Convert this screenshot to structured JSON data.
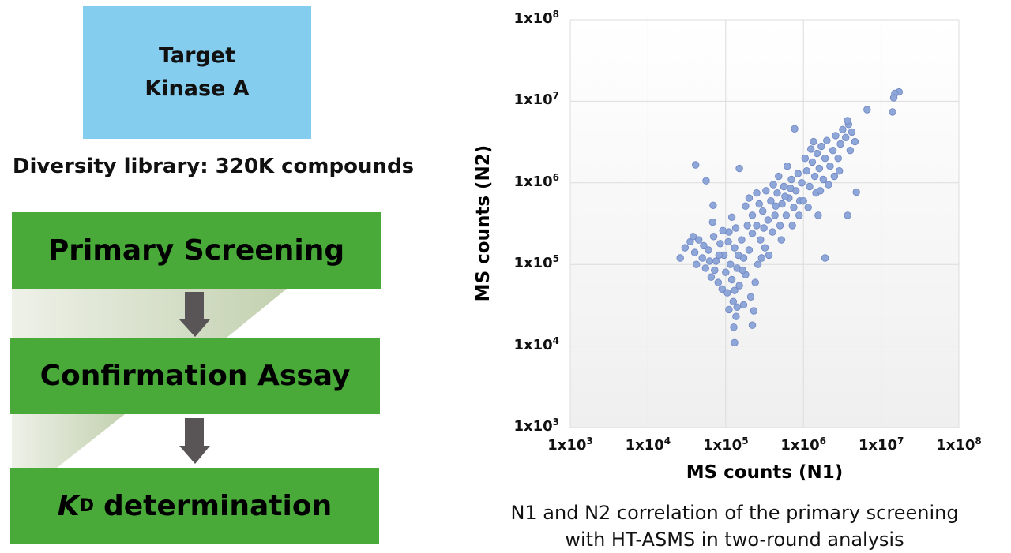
{
  "target": {
    "line1": "Target",
    "line2": "Kinase A",
    "color": "#85cdee"
  },
  "library": "Diversity library: 320K compounds",
  "workflow": {
    "color": "#49aa3a",
    "arrow_color": "#595556",
    "steps": [
      {
        "label": "Primary Screening"
      },
      {
        "label": "Confirmation Assay"
      },
      {
        "label_k": "K",
        "label_sub": "D",
        "label_rest": "determination"
      }
    ]
  },
  "chart_data": {
    "type": "scatter",
    "xlabel": "MS counts (N1)",
    "ylabel": "MS counts (N2)",
    "xscale": "log",
    "yscale": "log",
    "xlim": [
      1000,
      100000000
    ],
    "ylim": [
      1000,
      100000000
    ],
    "grid": true,
    "marker_color": "#8fa6d8",
    "x_ticks": [
      {
        "base": "1x10",
        "exp": "3"
      },
      {
        "base": "1x10",
        "exp": "4"
      },
      {
        "base": "1x10",
        "exp": "5"
      },
      {
        "base": "1x10",
        "exp": "6"
      },
      {
        "base": "1x10",
        "exp": "7"
      },
      {
        "base": "1x10",
        "exp": "8"
      }
    ],
    "y_ticks": [
      {
        "base": "1x10",
        "exp": "3"
      },
      {
        "base": "1x10",
        "exp": "4"
      },
      {
        "base": "1x10",
        "exp": "5"
      },
      {
        "base": "1x10",
        "exp": "6"
      },
      {
        "base": "1x10",
        "exp": "7"
      },
      {
        "base": "1x10",
        "exp": "8"
      }
    ],
    "points": [
      [
        30000.0,
        160000.0
      ],
      [
        35000.0,
        190000.0
      ],
      [
        40000.0,
        140000.0
      ],
      [
        45000.0,
        200000.0
      ],
      [
        50000.0,
        120000.0
      ],
      [
        55000.0,
        90000.0
      ],
      [
        60000.0,
        150000.0
      ],
      [
        65000.0,
        70000.0
      ],
      [
        70000.0,
        220000.0
      ],
      [
        75000.0,
        110000.0
      ],
      [
        80000.0,
        60000.0
      ],
      [
        85000.0,
        180000.0
      ],
      [
        90000.0,
        50000.0
      ],
      [
        95000.0,
        130000.0
      ],
      [
        100000.0,
        80000.0
      ],
      [
        105000.0,
        45000.0
      ],
      [
        110000.0,
        250000.0
      ],
      [
        115000.0,
        100000.0
      ],
      [
        120000.0,
        65000.0
      ],
      [
        125000.0,
        35000.0
      ],
      [
        130000.0,
        160000.0
      ],
      [
        140000.0,
        90000.0
      ],
      [
        150000.0,
        55000.0
      ],
      [
        160000.0,
        200000.0
      ],
      [
        170000.0,
        120000.0
      ],
      [
        180000.0,
        75000.0
      ],
      [
        190000.0,
        300000.0
      ],
      [
        200000.0,
        150000.0
      ],
      [
        210000.0,
        40000.0
      ],
      [
        220000.0,
        240000.0
      ],
      [
        42000.0,
        100000.0
      ],
      [
        52000.0,
        170000.0
      ],
      [
        62000.0,
        110000.0
      ],
      [
        72000.0,
        85000.0
      ],
      [
        82000.0,
        130000.0
      ],
      [
        92000.0,
        260000.0
      ],
      [
        108000.0,
        190000.0
      ],
      [
        135000.0,
        280000.0
      ],
      [
        145000.0,
        130000.0
      ],
      [
        165000.0,
        85000.0
      ],
      [
        240000.0,
        60000.0
      ],
      [
        260000.0,
        100000.0
      ],
      [
        110000.0,
        28000.0
      ],
      [
        140000.0,
        30000.0
      ],
      [
        170000.0,
        32000.0
      ],
      [
        230000.0,
        27000.0
      ],
      [
        130000.0,
        48000.0
      ],
      [
        38000.0,
        220000.0
      ],
      [
        68000.0,
        330000.0
      ],
      [
        120000.0,
        380000.0
      ],
      [
        250000.0,
        300000.0
      ],
      [
        280000.0,
        200000.0
      ],
      [
        300000.0,
        450000.0
      ],
      [
        320000.0,
        160000.0
      ],
      [
        350000.0,
        350000.0
      ],
      [
        380000.0,
        600000.0
      ],
      [
        400000.0,
        250000.0
      ],
      [
        430000.0,
        400000.0
      ],
      [
        460000.0,
        750000.0
      ],
      [
        500000.0,
        300000.0
      ],
      [
        530000.0,
        550000.0
      ],
      [
        560000.0,
        900000.0
      ],
      [
        600000.0,
        400000.0
      ],
      [
        650000.0,
        650000.0
      ],
      [
        700000.0,
        1100000.0
      ],
      [
        750000.0,
        500000.0
      ],
      [
        800000.0,
        800000.0
      ],
      [
        850000.0,
        1300000.0
      ],
      [
        900000.0,
        600000.0
      ],
      [
        950000.0,
        1000000.0
      ],
      [
        270000.0,
        550000.0
      ],
      [
        330000.0,
        800000.0
      ],
      [
        480000.0,
        1200000.0
      ],
      [
        620000.0,
        1600000.0
      ],
      [
        360000.0,
        130000.0
      ],
      [
        520000.0,
        200000.0
      ],
      [
        720000.0,
        300000.0
      ],
      [
        880000.0,
        400000.0
      ],
      [
        290000.0,
        120000.0
      ],
      [
        410000.0,
        950000.0
      ],
      [
        310000.0,
        280000.0
      ],
      [
        440000.0,
        520000.0
      ],
      [
        580000.0,
        680000.0
      ],
      [
        680000.0,
        860000.0
      ],
      [
        220000.0,
        400000.0
      ],
      [
        180000.0,
        520000.0
      ],
      [
        200000.0,
        650000.0
      ],
      [
        250000.0,
        750000.0
      ],
      [
        1100000.0,
        1400000.0
      ],
      [
        1200000.0,
        900000.0
      ],
      [
        1300000.0,
        1800000.0
      ],
      [
        1400000.0,
        1200000.0
      ],
      [
        1500000.0,
        2300000.0
      ],
      [
        1600000.0,
        1500000.0
      ],
      [
        1700000.0,
        2800000.0
      ],
      [
        1800000.0,
        1100000.0
      ],
      [
        1900000.0,
        2000000.0
      ],
      [
        2000000.0,
        3300000.0
      ],
      [
        2200000.0,
        1600000.0
      ],
      [
        2400000.0,
        2500000.0
      ],
      [
        2600000.0,
        3800000.0
      ],
      [
        2800000.0,
        2000000.0
      ],
      [
        3000000.0,
        3000000.0
      ],
      [
        3200000.0,
        4500000.0
      ],
      [
        3500000.0,
        3600000.0
      ],
      [
        3800000.0,
        5200000.0
      ],
      [
        4200000.0,
        4200000.0
      ],
      [
        4600000.0,
        3200000.0
      ],
      [
        1050000.0,
        2000000.0
      ],
      [
        1250000.0,
        2600000.0
      ],
      [
        1450000.0,
        750000.0
      ],
      [
        1650000.0,
        800000.0
      ],
      [
        2100000.0,
        950000.0
      ],
      [
        2500000.0,
        1200000.0
      ],
      [
        1000000.0,
        600000.0
      ],
      [
        1150000.0,
        500000.0
      ],
      [
        3700000.0,
        5800000.0
      ],
      [
        4000000.0,
        2500000.0
      ],
      [
        1350000.0,
        3200000.0
      ],
      [
        2900000.0,
        1400000.0
      ],
      [
        1550000.0,
        400000.0
      ],
      [
        17000000.0,
        13000000.0
      ],
      [
        15000000.0,
        12500000.0
      ],
      [
        14500000.0,
        11000000.0
      ],
      [
        14000000.0,
        7400000.0
      ],
      [
        6600000.0,
        7900000.0
      ],
      [
        770000.0,
        4600000.0
      ],
      [
        41000.0,
        1660000.0
      ],
      [
        56000.0,
        1060000.0
      ],
      [
        150000.0,
        1500000.0
      ],
      [
        4800000.0,
        770000.0
      ],
      [
        3700000.0,
        400000.0
      ],
      [
        1900000.0,
        120000.0
      ],
      [
        26000.0,
        120000.0
      ],
      [
        130000.0,
        11000.0
      ],
      [
        127000.0,
        17000.0
      ],
      [
        220000.0,
        18000.0
      ],
      [
        136000.0,
        23000.0
      ],
      [
        69000.0,
        530000.0
      ]
    ]
  },
  "caption": {
    "line1": "N1 and N2 correlation of the primary screening",
    "line2": "with HT-ASMS in two-round analysis"
  }
}
